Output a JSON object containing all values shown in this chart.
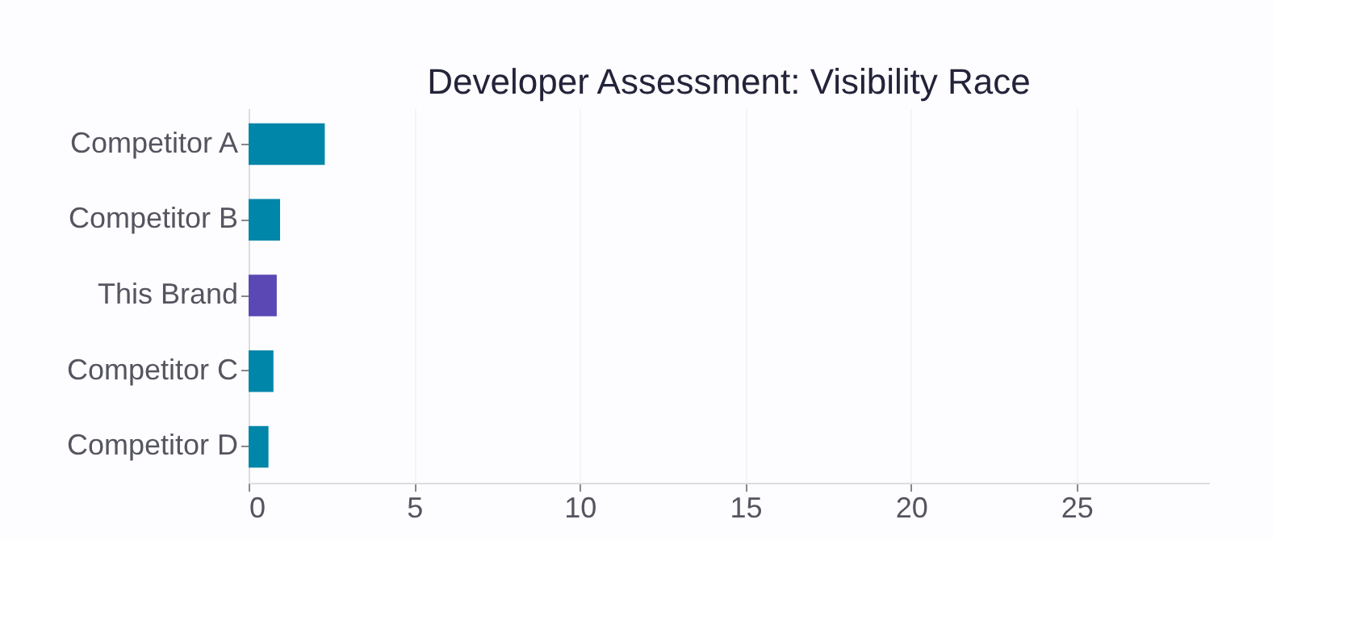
{
  "chart_data": {
    "type": "bar",
    "orientation": "horizontal",
    "title": "Developer Assessment: Visibility Race",
    "categories": [
      "Competitor A",
      "Competitor B",
      "This Brand",
      "Competitor C",
      "Competitor D"
    ],
    "values": [
      2.3,
      0.95,
      0.85,
      0.75,
      0.6
    ],
    "colors": [
      "#0086a8",
      "#0086a8",
      "#5b48b5",
      "#0086a8",
      "#0086a8"
    ],
    "xlim": [
      0,
      29
    ],
    "xticks": [
      0,
      5,
      10,
      15,
      20,
      25
    ],
    "grid": "x"
  }
}
